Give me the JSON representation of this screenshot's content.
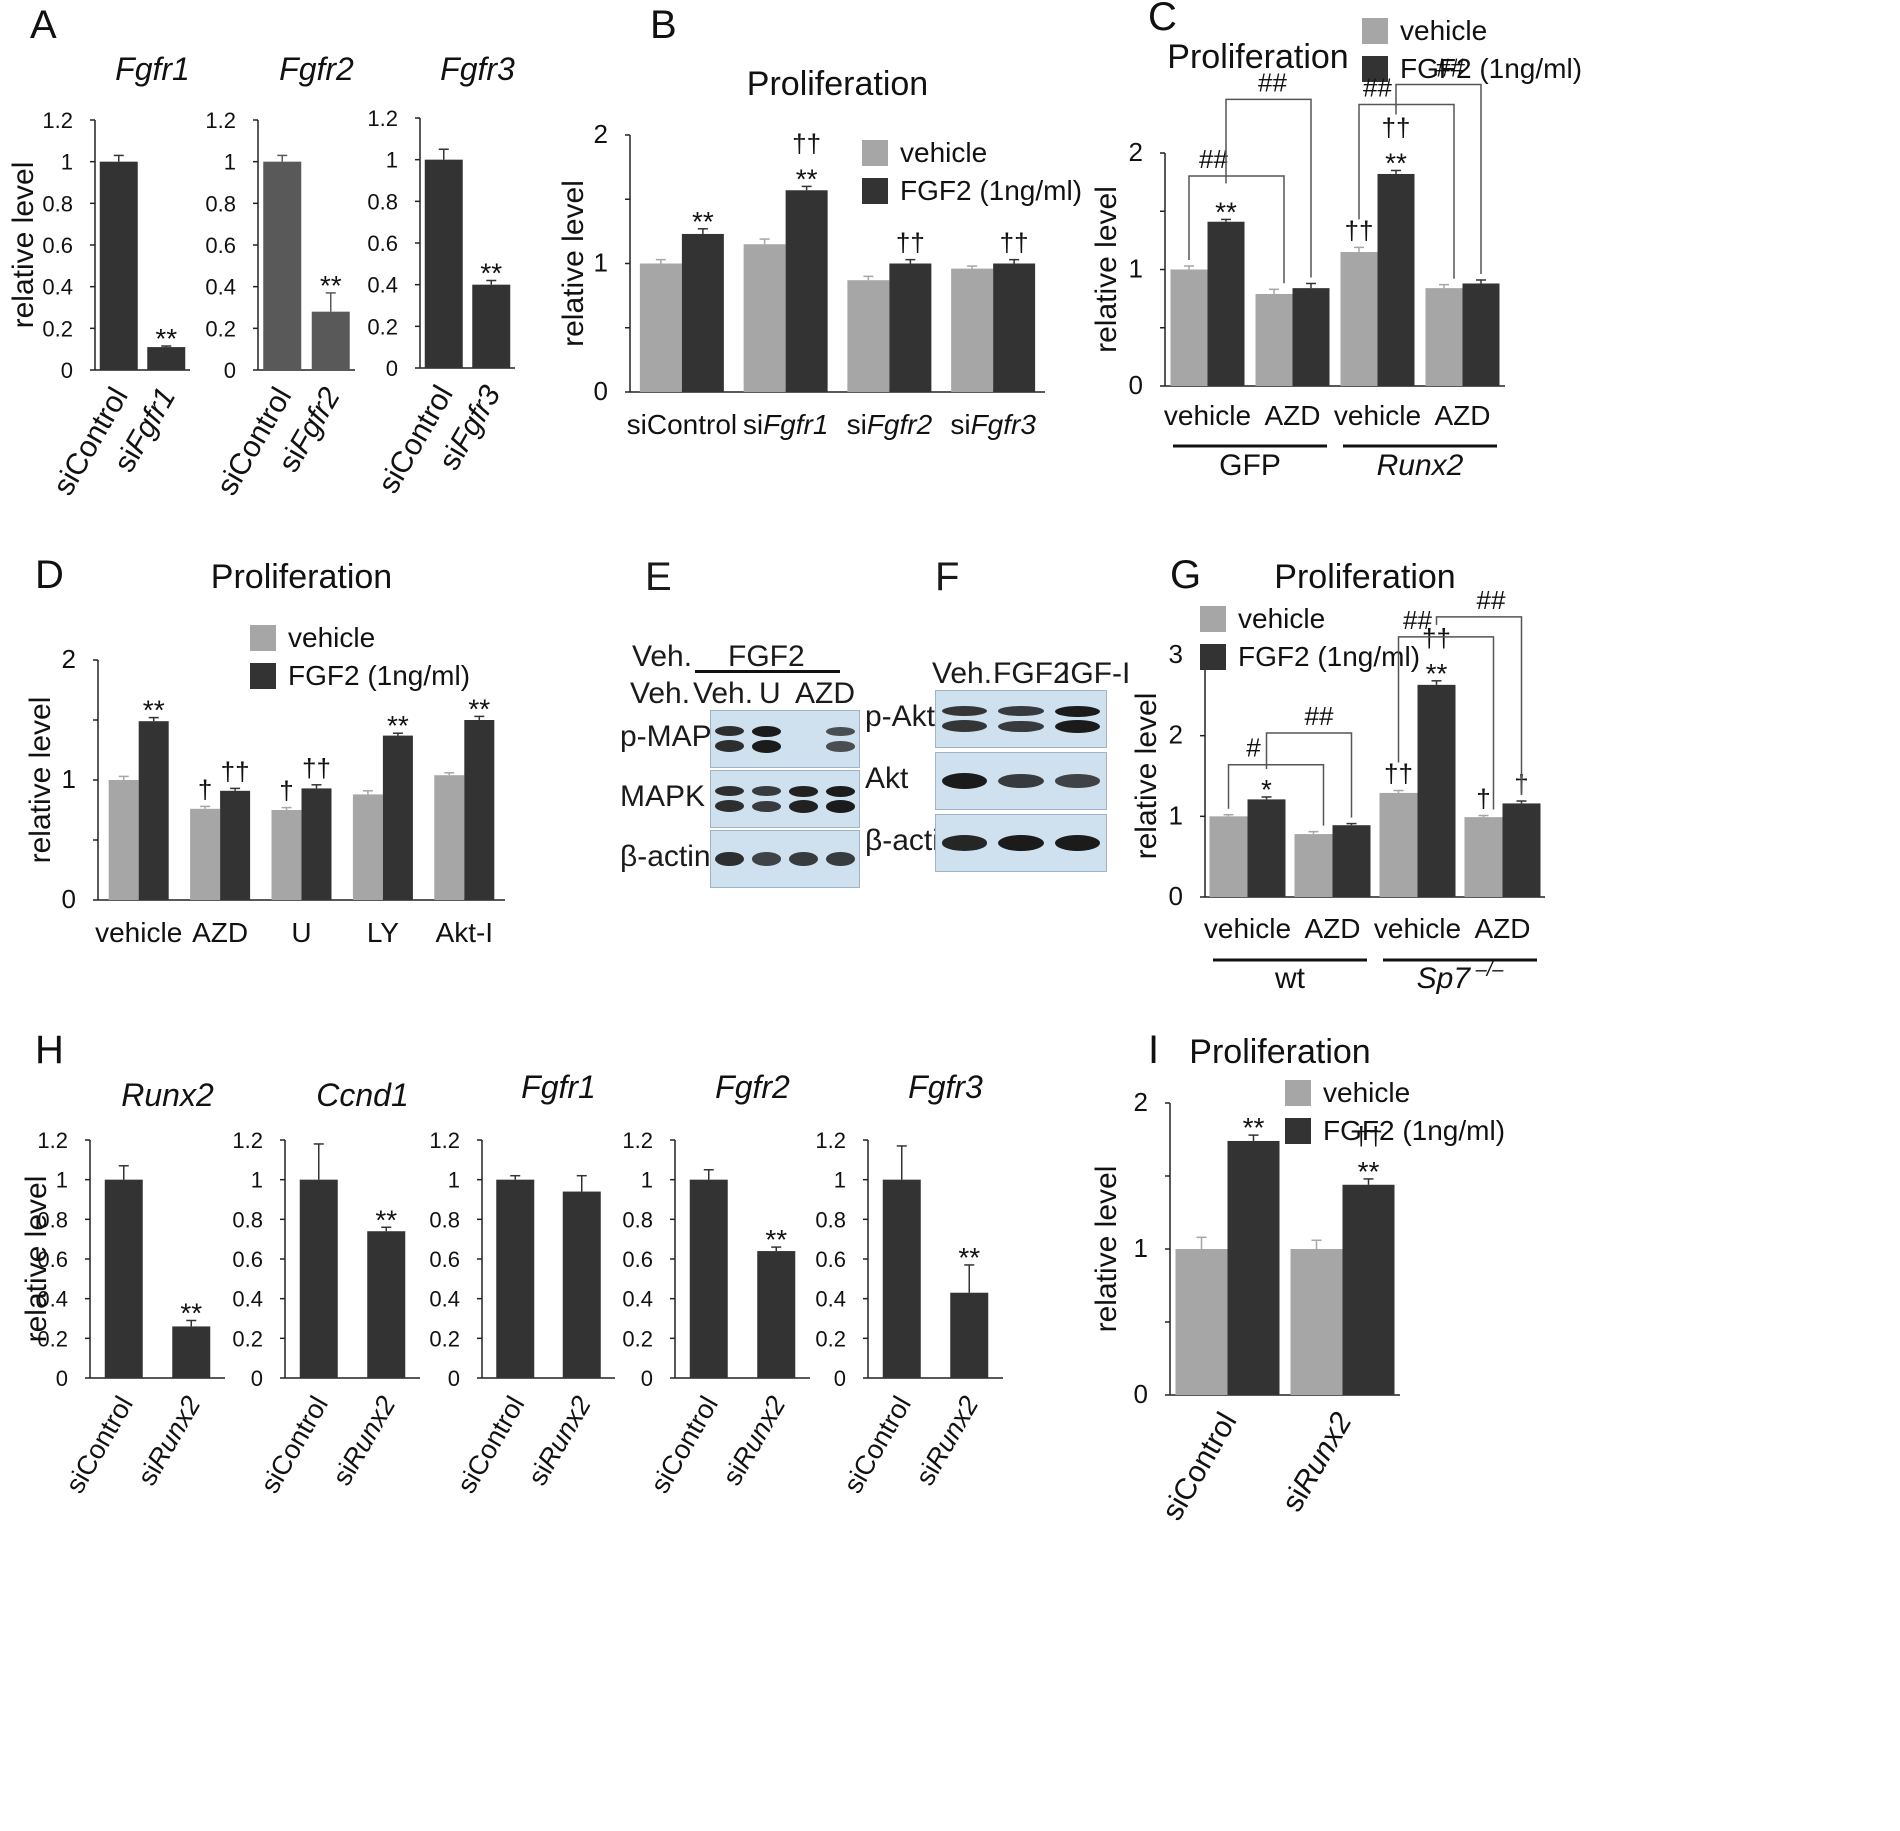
{
  "colors": {
    "vehicle": "#a6a6a6",
    "fgf": "#333333",
    "grey_bar": "#595959",
    "text": "#111111",
    "blot_bg": "#cfe0ee",
    "band": "#1b1b1b"
  },
  "chart_data": [
    {
      "id": "A1",
      "panel": "A",
      "type": "bar",
      "title": "Fgfr1",
      "title_italic": true,
      "ylabel": "relative level",
      "ylim": [
        0,
        1.2
      ],
      "yticks": [
        "0",
        "0.2",
        "0.4",
        "0.6",
        "0.8",
        "1",
        "1.2"
      ],
      "categories": [
        [
          "siControl"
        ],
        [
          "si",
          "Fgfr1"
        ]
      ],
      "series": [
        {
          "name": "level",
          "values": [
            1.0,
            0.11
          ],
          "errors": [
            0.03,
            0.005
          ],
          "annotations": [
            "",
            "**"
          ]
        }
      ]
    },
    {
      "id": "A2",
      "type": "bar",
      "title": "Fgfr2",
      "title_italic": true,
      "ylim": [
        0,
        1.2
      ],
      "yticks": [
        "0",
        "0.2",
        "0.4",
        "0.6",
        "0.8",
        "1",
        "1.2"
      ],
      "categories": [
        [
          "siControl"
        ],
        [
          "si",
          "Fgfr2"
        ]
      ],
      "series": [
        {
          "name": "level",
          "values": [
            1.0,
            0.28
          ],
          "errors": [
            0.03,
            0.09
          ],
          "annotations": [
            "",
            "**"
          ]
        }
      ]
    },
    {
      "id": "A3",
      "type": "bar",
      "title": "Fgfr3",
      "title_italic": true,
      "ylim": [
        0,
        1.2
      ],
      "yticks": [
        "0",
        "0.2",
        "0.4",
        "0.6",
        "0.8",
        "1",
        "1.2"
      ],
      "categories": [
        [
          "siControl"
        ],
        [
          "si",
          "Fgfr3"
        ]
      ],
      "series": [
        {
          "name": "level",
          "values": [
            1.0,
            0.4
          ],
          "errors": [
            0.05,
            0.02
          ],
          "annotations": [
            "",
            "**"
          ]
        }
      ]
    },
    {
      "id": "B",
      "panel": "B",
      "type": "bar",
      "title": "Proliferation",
      "ylabel": "relative level",
      "ylim": [
        0,
        2
      ],
      "yticks": [
        "0",
        "",
        "1",
        "",
        "2"
      ],
      "categories": [
        [
          "siControl"
        ],
        [
          "si",
          "Fgfr1"
        ],
        [
          "si",
          "Fgfr2"
        ],
        [
          "si",
          "Fgfr3"
        ]
      ],
      "legend": [
        "vehicle",
        "FGF2 (1ng/ml)"
      ],
      "series": [
        {
          "name": "vehicle",
          "values": [
            1.0,
            1.15,
            0.87,
            0.96
          ],
          "errors": [
            0.03,
            0.04,
            0.03,
            0.02
          ],
          "annotations": [
            "",
            "",
            "",
            ""
          ]
        },
        {
          "name": "FGF2 (1ng/ml)",
          "values": [
            1.23,
            1.57,
            1.0,
            1.0
          ],
          "errors": [
            0.04,
            0.03,
            0.03,
            0.03
          ],
          "annotations": [
            "**",
            "††\n**",
            "††",
            "††"
          ]
        }
      ]
    },
    {
      "id": "C",
      "panel": "C",
      "type": "bar",
      "title": "Proliferation",
      "ylabel": "relative level",
      "ylim": [
        0,
        2
      ],
      "yticks": [
        "0",
        "",
        "1",
        "",
        "2"
      ],
      "categories": [
        [
          "vehicle"
        ],
        [
          "AZD"
        ],
        [
          "vehicle"
        ],
        [
          "AZD"
        ]
      ],
      "groups": [
        {
          "label": "GFP",
          "italic": false
        },
        {
          "label": "Runx2",
          "italic": true
        }
      ],
      "legend": [
        "vehicle",
        "FGF2 (1ng/ml)"
      ],
      "series": [
        {
          "name": "vehicle",
          "values": [
            1.0,
            0.79,
            1.15,
            0.84
          ],
          "errors": [
            0.03,
            0.04,
            0.04,
            0.03
          ],
          "annotations": [
            "",
            "",
            "††",
            ""
          ]
        },
        {
          "name": "FGF2 (1ng/ml)",
          "values": [
            1.41,
            0.84,
            1.82,
            0.88
          ],
          "errors": [
            0.02,
            0.04,
            0.03,
            0.03
          ],
          "annotations": [
            "**",
            "",
            "††\n**",
            ""
          ]
        }
      ],
      "significance": [
        "##",
        "##",
        "##",
        "##"
      ]
    },
    {
      "id": "D",
      "panel": "D",
      "type": "bar",
      "title": "Proliferation",
      "ylabel": "relative level",
      "ylim": [
        0,
        2
      ],
      "yticks": [
        "0",
        "",
        "1",
        "",
        "2"
      ],
      "categories": [
        [
          "vehicle"
        ],
        [
          "AZD"
        ],
        [
          "U"
        ],
        [
          "LY"
        ],
        [
          "Akt-I"
        ]
      ],
      "legend": [
        "vehicle",
        "FGF2 (1ng/ml)"
      ],
      "series": [
        {
          "name": "vehicle",
          "values": [
            1.0,
            0.76,
            0.75,
            0.88,
            1.04
          ],
          "errors": [
            0.03,
            0.02,
            0.02,
            0.03,
            0.02
          ],
          "annotations": [
            "",
            "†",
            "†",
            "",
            ""
          ]
        },
        {
          "name": "FGF2 (1ng/ml)",
          "values": [
            1.49,
            0.91,
            0.93,
            1.37,
            1.5
          ],
          "errors": [
            0.03,
            0.02,
            0.03,
            0.02,
            0.03
          ],
          "annotations": [
            "**",
            "††",
            "††",
            "**",
            "**"
          ]
        }
      ]
    },
    {
      "id": "G",
      "panel": "G",
      "type": "bar",
      "title": "Proliferation",
      "ylabel": "relative level",
      "ylim": [
        0,
        3
      ],
      "yticks": [
        "0",
        "1",
        "2",
        "3"
      ],
      "categories": [
        [
          "vehicle"
        ],
        [
          "AZD"
        ],
        [
          "vehicle"
        ],
        [
          "AZD"
        ]
      ],
      "groups": [
        {
          "label": "wt",
          "italic": false
        },
        {
          "label": "Sp7",
          "italic": true,
          "sup": "–/–"
        }
      ],
      "legend": [
        "vehicle",
        "FGF2 (1ng/ml)"
      ],
      "series": [
        {
          "name": "vehicle",
          "values": [
            1.0,
            0.78,
            1.29,
            0.99
          ],
          "errors": [
            0.02,
            0.03,
            0.03,
            0.02
          ],
          "annotations": [
            "",
            "",
            "††",
            "†"
          ]
        },
        {
          "name": "FGF2 (1ng/ml)",
          "values": [
            1.21,
            0.89,
            2.63,
            1.16
          ],
          "errors": [
            0.03,
            0.02,
            0.05,
            0.03
          ],
          "annotations": [
            "*",
            "",
            "††\n**",
            "†"
          ]
        }
      ],
      "significance": [
        "#",
        "##",
        "##",
        "##"
      ]
    },
    {
      "id": "H1",
      "panel": "H",
      "type": "bar",
      "title": "Runx2",
      "title_italic": true,
      "ylabel": "relative level",
      "ylim": [
        0,
        1.2
      ],
      "yticks": [
        "0",
        "0.2",
        "0.4",
        "0.6",
        "0.8",
        "1",
        "1.2"
      ],
      "categories": [
        [
          "siControl"
        ],
        [
          "si",
          "Runx2"
        ]
      ],
      "series": [
        {
          "name": "level",
          "values": [
            1.0,
            0.26
          ],
          "errors": [
            0.07,
            0.03
          ],
          "annotations": [
            "",
            "**"
          ]
        }
      ]
    },
    {
      "id": "H2",
      "type": "bar",
      "title": "Ccnd1",
      "title_italic": true,
      "ylim": [
        0,
        1.2
      ],
      "yticks": [
        "0",
        "0.2",
        "0.4",
        "0.6",
        "0.8",
        "1",
        "1.2"
      ],
      "categories": [
        [
          "siControl"
        ],
        [
          "si",
          "Runx2"
        ]
      ],
      "series": [
        {
          "name": "level",
          "values": [
            1.0,
            0.74
          ],
          "errors": [
            0.18,
            0.02
          ],
          "annotations": [
            "",
            "**"
          ]
        }
      ]
    },
    {
      "id": "H3",
      "type": "bar",
      "title": "Fgfr1",
      "title_italic": true,
      "ylim": [
        0,
        1.2
      ],
      "yticks": [
        "0",
        "0.2",
        "0.4",
        "0.6",
        "0.8",
        "1",
        "1.2"
      ],
      "categories": [
        [
          "siControl"
        ],
        [
          "si",
          "Runx2"
        ]
      ],
      "series": [
        {
          "name": "level",
          "values": [
            1.0,
            0.94
          ],
          "errors": [
            0.02,
            0.08
          ],
          "annotations": [
            "",
            ""
          ]
        }
      ]
    },
    {
      "id": "H4",
      "type": "bar",
      "title": "Fgfr2",
      "title_italic": true,
      "ylim": [
        0,
        1.2
      ],
      "yticks": [
        "0",
        "0.2",
        "0.4",
        "0.6",
        "0.8",
        "1",
        "1.2"
      ],
      "categories": [
        [
          "siControl"
        ],
        [
          "si",
          "Runx2"
        ]
      ],
      "series": [
        {
          "name": "level",
          "values": [
            1.0,
            0.64
          ],
          "errors": [
            0.05,
            0.02
          ],
          "annotations": [
            "",
            "**"
          ]
        }
      ]
    },
    {
      "id": "H5",
      "type": "bar",
      "title": "Fgfr3",
      "title_italic": true,
      "ylim": [
        0,
        1.2
      ],
      "yticks": [
        "0",
        "0.2",
        "0.4",
        "0.6",
        "0.8",
        "1",
        "1.2"
      ],
      "categories": [
        [
          "siControl"
        ],
        [
          "si",
          "Runx2"
        ]
      ],
      "series": [
        {
          "name": "level",
          "values": [
            1.0,
            0.43
          ],
          "errors": [
            0.17,
            0.14
          ],
          "annotations": [
            "",
            "**"
          ]
        }
      ]
    },
    {
      "id": "I",
      "panel": "I",
      "type": "bar",
      "title": "Proliferation",
      "ylabel": "relative level",
      "ylim": [
        0,
        2
      ],
      "yticks": [
        "0",
        "",
        "1",
        "",
        "2"
      ],
      "categories": [
        [
          "siControl"
        ],
        [
          "si",
          "Runx2"
        ]
      ],
      "legend": [
        "vehicle",
        "FGF2 (1ng/ml)"
      ],
      "series": [
        {
          "name": "vehicle",
          "values": [
            1.0,
            1.0
          ],
          "errors": [
            0.08,
            0.06
          ],
          "annotations": [
            "",
            ""
          ]
        },
        {
          "name": "FGF2 (1ng/ml)",
          "values": [
            1.74,
            1.44
          ],
          "errors": [
            0.04,
            0.04
          ],
          "annotations": [
            "**",
            "††\n**"
          ]
        }
      ]
    }
  ],
  "blots": {
    "E": {
      "panel": "E",
      "header_top": "Veh.",
      "header_group": "FGF2",
      "lanes": [
        "Veh.",
        "Veh.",
        "U",
        "AZD"
      ],
      "rows": [
        {
          "label": "p-MAPK",
          "intensities": [
            0.85,
            1.0,
            0.0,
            0.6
          ]
        },
        {
          "label": "MAPK",
          "intensities": [
            0.85,
            0.75,
            0.95,
            1.0
          ]
        },
        {
          "label": "β-actin",
          "intensities": [
            0.85,
            0.7,
            0.75,
            0.75
          ]
        }
      ]
    },
    "F": {
      "panel": "F",
      "lanes": [
        "Veh.",
        "FGF2",
        "IGF-I"
      ],
      "rows": [
        {
          "label": "p-Akt",
          "intensities": [
            0.8,
            0.75,
            1.0
          ]
        },
        {
          "label": "Akt",
          "intensities": [
            1.0,
            0.75,
            0.7
          ]
        },
        {
          "label": "β-actin",
          "intensities": [
            0.9,
            1.0,
            1.0
          ]
        }
      ]
    }
  }
}
